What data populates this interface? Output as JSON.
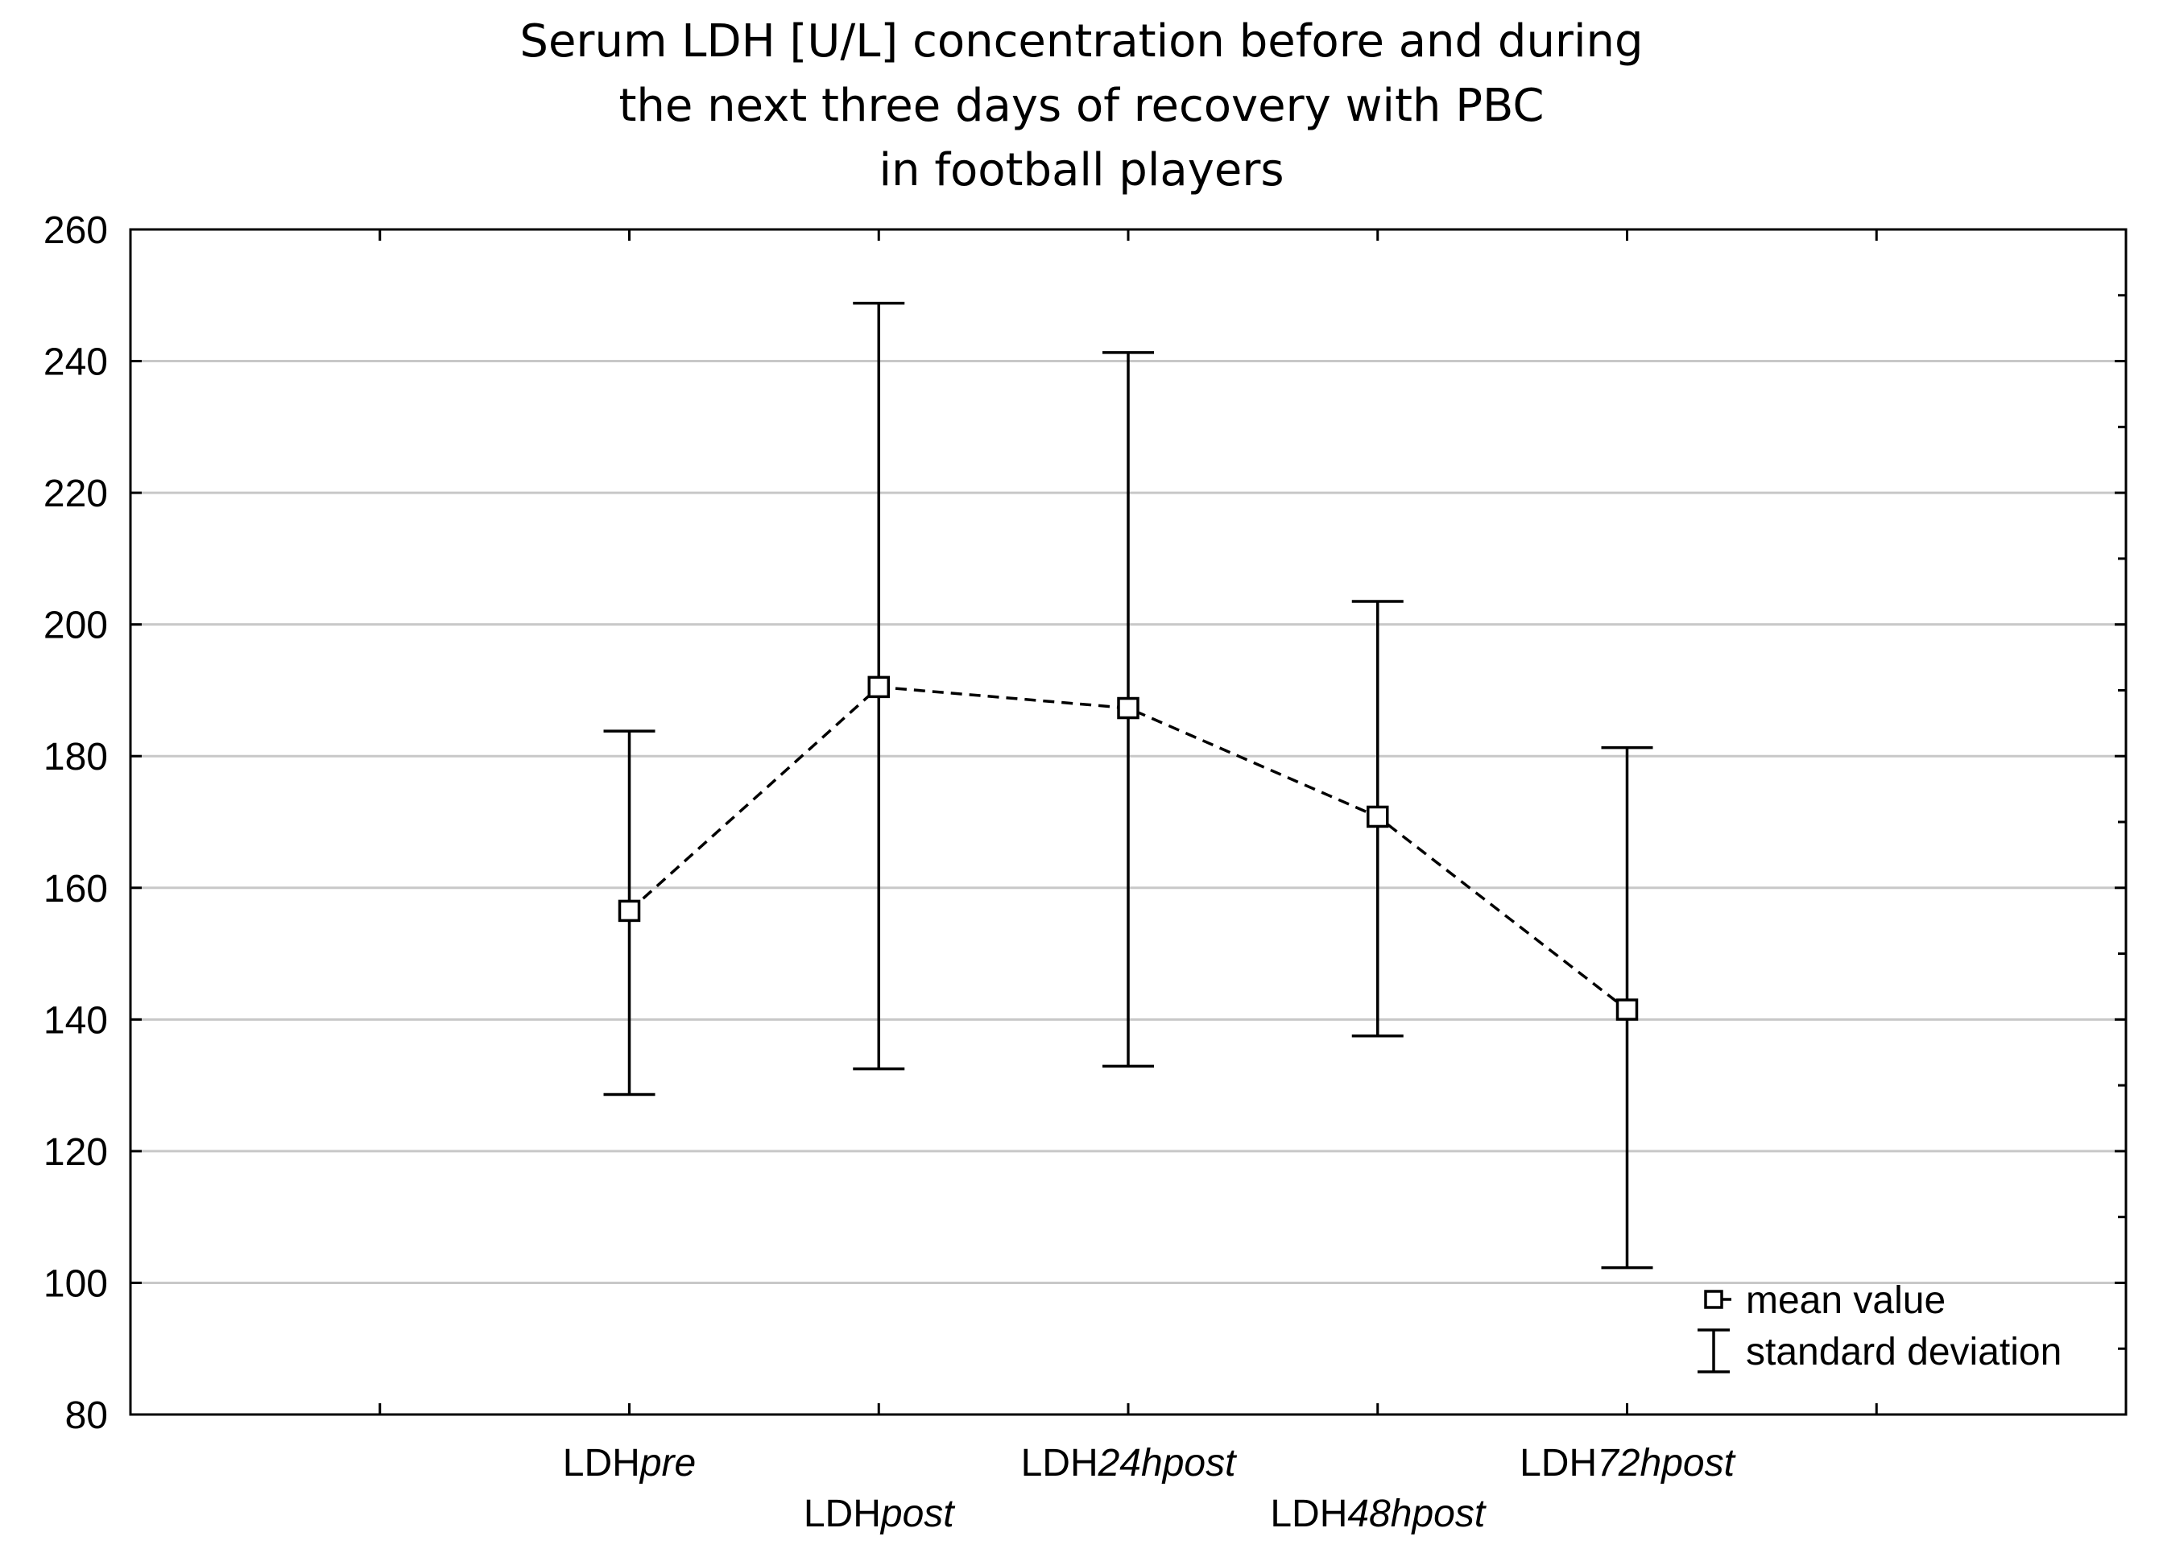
{
  "chart_data": {
    "type": "line",
    "title_lines": [
      "Serum LDH [U/L] concentration before and during",
      "the next three days of recovery with PBC",
      "in football players"
    ],
    "xlabel": "",
    "ylabel": "",
    "categories": [
      {
        "prefix": "LDH",
        "suffix": "pre"
      },
      {
        "prefix": "LDH",
        "suffix": "post"
      },
      {
        "prefix": "LDH",
        "suffix": "24hpost"
      },
      {
        "prefix": "LDH",
        "suffix": "48hpost"
      },
      {
        "prefix": "LDH",
        "suffix": "72hpost"
      }
    ],
    "category_slots": [
      2,
      3,
      4,
      5,
      6
    ],
    "x_slot_count": 8,
    "series": [
      {
        "name": "mean value",
        "values": [
          156.5,
          190.5,
          187.3,
          170.8,
          141.5
        ],
        "sd_upper": [
          183.8,
          248.8,
          241.3,
          203.5,
          181.3
        ],
        "sd_lower": [
          128.6,
          132.5,
          132.9,
          137.5,
          102.3
        ]
      }
    ],
    "ylim": [
      80,
      260
    ],
    "yticks": [
      80,
      100,
      120,
      140,
      160,
      180,
      200,
      220,
      240,
      260
    ],
    "grid": true,
    "legend": {
      "placement": "bottom-right",
      "entries": [
        "mean value",
        "standard deviation"
      ]
    },
    "colors": {
      "line": "#000000",
      "grid": "#c8c8c8",
      "background": "#ffffff"
    }
  }
}
